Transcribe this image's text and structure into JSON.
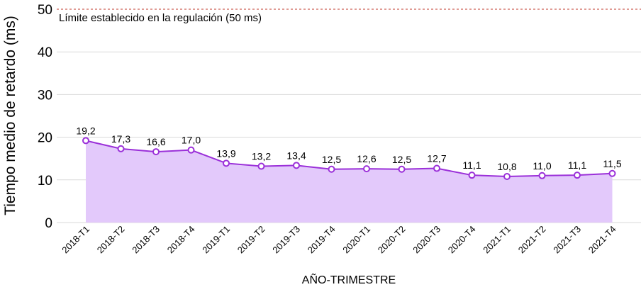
{
  "chart_data": {
    "type": "area",
    "categories": [
      "2018-T1",
      "2018-T2",
      "2018-T3",
      "2018-T4",
      "2019-T1",
      "2019-T2",
      "2019-T3",
      "2019-T4",
      "2020-T1",
      "2020-T2",
      "2020-T3",
      "2020-T4",
      "2021-T1",
      "2021-T2",
      "2021-T3",
      "2021-T4"
    ],
    "values": [
      19.2,
      17.3,
      16.6,
      17.0,
      13.9,
      13.2,
      13.4,
      12.5,
      12.6,
      12.5,
      12.7,
      11.1,
      10.8,
      11.0,
      11.1,
      11.5
    ],
    "value_labels": [
      "19,2",
      "17,3",
      "16,6",
      "17,0",
      "13,9",
      "13,2",
      "13,4",
      "12,5",
      "12,6",
      "12,5",
      "12,7",
      "11,1",
      "10,8",
      "11,0",
      "11,1",
      "11,5"
    ],
    "title": "",
    "xlabel": "AÑO-TRIMESTRE",
    "ylabel": "Tiempo medio de retardo (ms)",
    "ylim": [
      0,
      50
    ],
    "yticks": [
      0,
      10,
      20,
      30,
      40,
      50
    ],
    "grid": true,
    "reference_line": {
      "value": 50,
      "label": "Límite establecido en la regulación (50 ms)",
      "color": "#c0392b"
    },
    "colors": {
      "line": "#9b30d9",
      "fill": "#e3c9fb",
      "grid": "#d9d9d9"
    }
  }
}
